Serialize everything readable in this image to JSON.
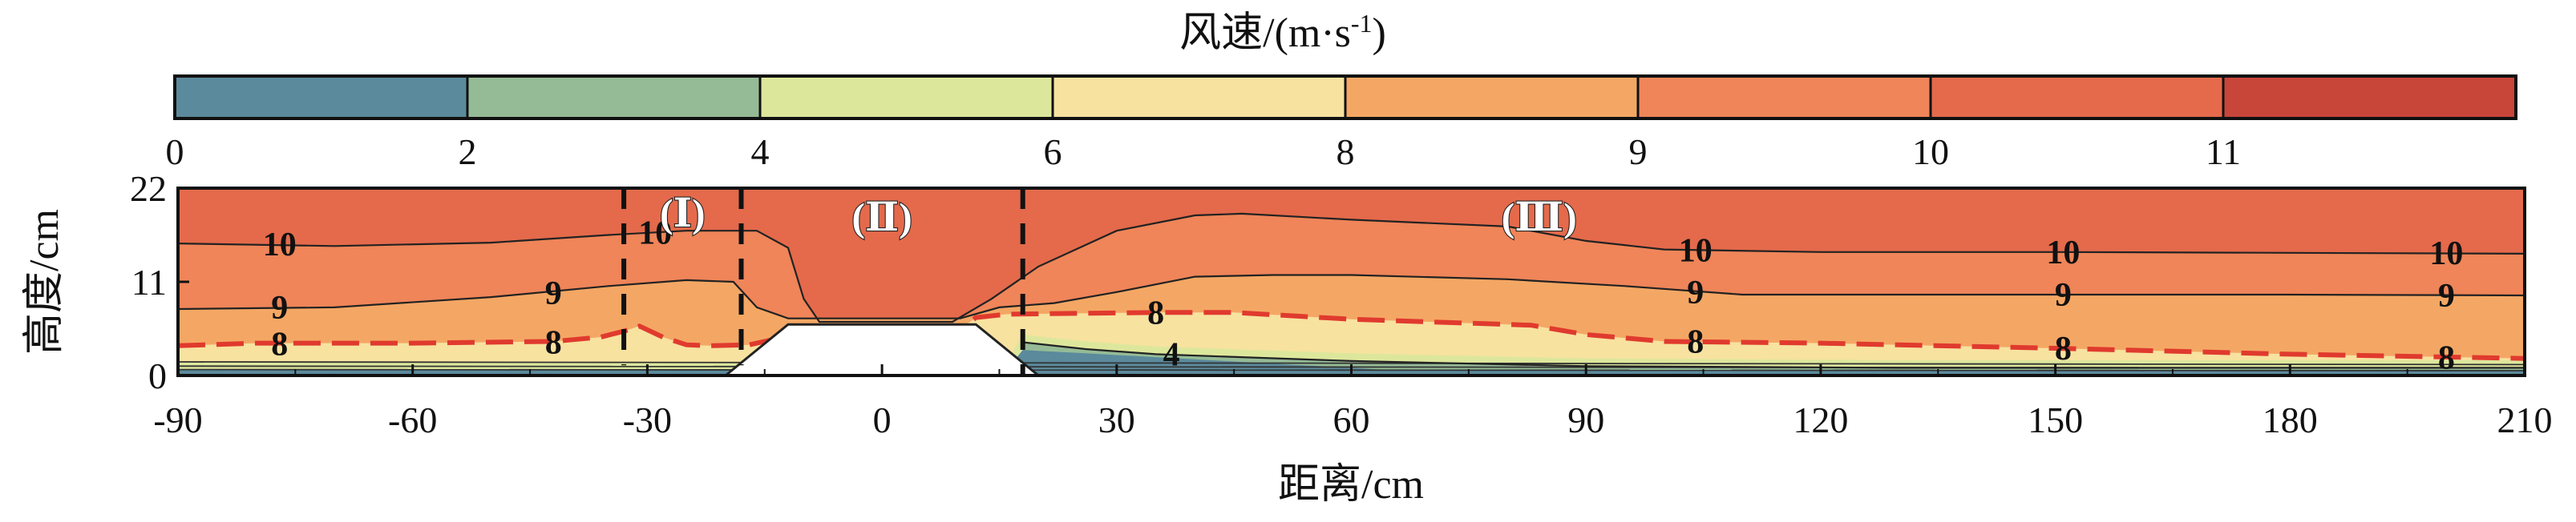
{
  "chart_data": {
    "type": "heatmap",
    "title": "",
    "xlabel": "距离/cm",
    "ylabel": "高度/cm",
    "xlim": [
      -90,
      210
    ],
    "ylim": [
      0,
      22
    ],
    "x_ticks": [
      -90,
      -60,
      -30,
      0,
      30,
      60,
      90,
      120,
      150,
      180,
      210
    ],
    "y_ticks": [
      0,
      11,
      22
    ],
    "colorbar": {
      "title": "风速/(m·s",
      "title_sup": "-1",
      "title_close": ")",
      "levels": [
        0,
        2,
        4,
        6,
        8,
        9,
        10,
        11
      ],
      "colors": [
        "#5b8a9c",
        "#95bb96",
        "#dde79c",
        "#f7e2a0",
        "#f4a764",
        "#ef8559",
        "#e46a4b",
        "#c8453a"
      ],
      "color_max": 12
    },
    "obstacle": {
      "x_bottom": [
        -20,
        20
      ],
      "x_top": [
        -12,
        12
      ],
      "height": 6
    },
    "contours": [
      {
        "level": 10,
        "label": "10",
        "points": [
          [
            -90,
            15.5
          ],
          [
            -70,
            15.2
          ],
          [
            -50,
            15.6
          ],
          [
            -35,
            16.5
          ],
          [
            -25,
            17
          ],
          [
            -16,
            17
          ],
          [
            -12,
            15
          ],
          [
            -10,
            9
          ],
          [
            -8,
            6.3
          ],
          [
            0,
            6.3
          ],
          [
            9,
            6.3
          ],
          [
            14,
            9
          ],
          [
            20,
            12.8
          ],
          [
            30,
            17
          ],
          [
            40,
            18.8
          ],
          [
            46,
            19
          ],
          [
            60,
            18.3
          ],
          [
            80,
            17.5
          ],
          [
            90,
            15.8
          ],
          [
            100,
            14.8
          ],
          [
            120,
            14.5
          ],
          [
            150,
            14.5
          ],
          [
            180,
            14.4
          ],
          [
            210,
            14.3
          ]
        ],
        "label_positions": [
          [
            -77,
            15.4
          ],
          [
            -29,
            16.8
          ],
          [
            104,
            14.7
          ],
          [
            151,
            14.5
          ],
          [
            200,
            14.4
          ]
        ]
      },
      {
        "level": 9,
        "label": "9",
        "points": [
          [
            -90,
            7.8
          ],
          [
            -70,
            8
          ],
          [
            -50,
            9.2
          ],
          [
            -35,
            10.5
          ],
          [
            -25,
            11.2
          ],
          [
            -19,
            11
          ],
          [
            -16,
            8
          ],
          [
            -12,
            6.7
          ],
          [
            10,
            6.7
          ],
          [
            15,
            8
          ],
          [
            22,
            8.5
          ],
          [
            30,
            9.8
          ],
          [
            40,
            11.6
          ],
          [
            50,
            11.8
          ],
          [
            60,
            11.8
          ],
          [
            80,
            11.3
          ],
          [
            95,
            10.5
          ],
          [
            110,
            9.5
          ],
          [
            130,
            9.5
          ],
          [
            150,
            9.5
          ],
          [
            180,
            9.5
          ],
          [
            210,
            9.4
          ]
        ],
        "label_positions": [
          [
            -77,
            8
          ],
          [
            -42,
            9.7
          ],
          [
            104,
            9.8
          ],
          [
            151,
            9.5
          ],
          [
            200,
            9.4
          ]
        ]
      },
      {
        "level": 8,
        "label": "8",
        "dashed": true,
        "points": [
          [
            -90,
            3.5
          ],
          [
            -80,
            3.8
          ],
          [
            -60,
            3.8
          ],
          [
            -42,
            4
          ],
          [
            -36,
            4.5
          ],
          [
            -33,
            5.2
          ],
          [
            -31,
            5.8
          ],
          [
            -28,
            4.5
          ],
          [
            -25,
            3.6
          ],
          [
            -22,
            3.5
          ],
          [
            -17,
            3.6
          ],
          [
            -14,
            4.2
          ],
          [
            -12,
            5.5
          ],
          [
            10,
            5.5
          ],
          [
            12,
            6.8
          ],
          [
            16,
            7.2
          ],
          [
            25,
            7.3
          ],
          [
            35,
            7.4
          ],
          [
            45,
            7.4
          ],
          [
            60,
            6.6
          ],
          [
            70,
            6.3
          ],
          [
            83,
            5.9
          ],
          [
            90,
            4.8
          ],
          [
            100,
            4
          ],
          [
            120,
            3.8
          ],
          [
            150,
            3.2
          ],
          [
            180,
            2.5
          ],
          [
            210,
            2
          ]
        ],
        "label_positions": [
          [
            -77,
            3.7
          ],
          [
            -42,
            3.9
          ],
          [
            35,
            7.4
          ],
          [
            104,
            4
          ],
          [
            151,
            3.2
          ],
          [
            200,
            2.1
          ]
        ]
      },
      {
        "level": 4,
        "label": "4",
        "points": [
          [
            18,
            3.9
          ],
          [
            26,
            3.1
          ],
          [
            35,
            2.5
          ],
          [
            60,
            1.7
          ],
          [
            90,
            1.1
          ],
          [
            130,
            0.9
          ],
          [
            210,
            0.9
          ]
        ],
        "label_positions": [
          [
            37,
            2.5
          ]
        ]
      }
    ],
    "zones": [
      {
        "label": "(Ⅰ)",
        "x_range": [
          -33,
          -18
        ],
        "label_x": -25.5,
        "label_y": 19
      },
      {
        "label": "(Ⅱ)",
        "x_range": [
          -18,
          18
        ],
        "label_x": 0,
        "label_y": 18.5
      },
      {
        "label": "(Ⅲ)",
        "x_range": [
          18,
          210
        ],
        "label_x": 84,
        "label_y": 18.5
      }
    ]
  }
}
